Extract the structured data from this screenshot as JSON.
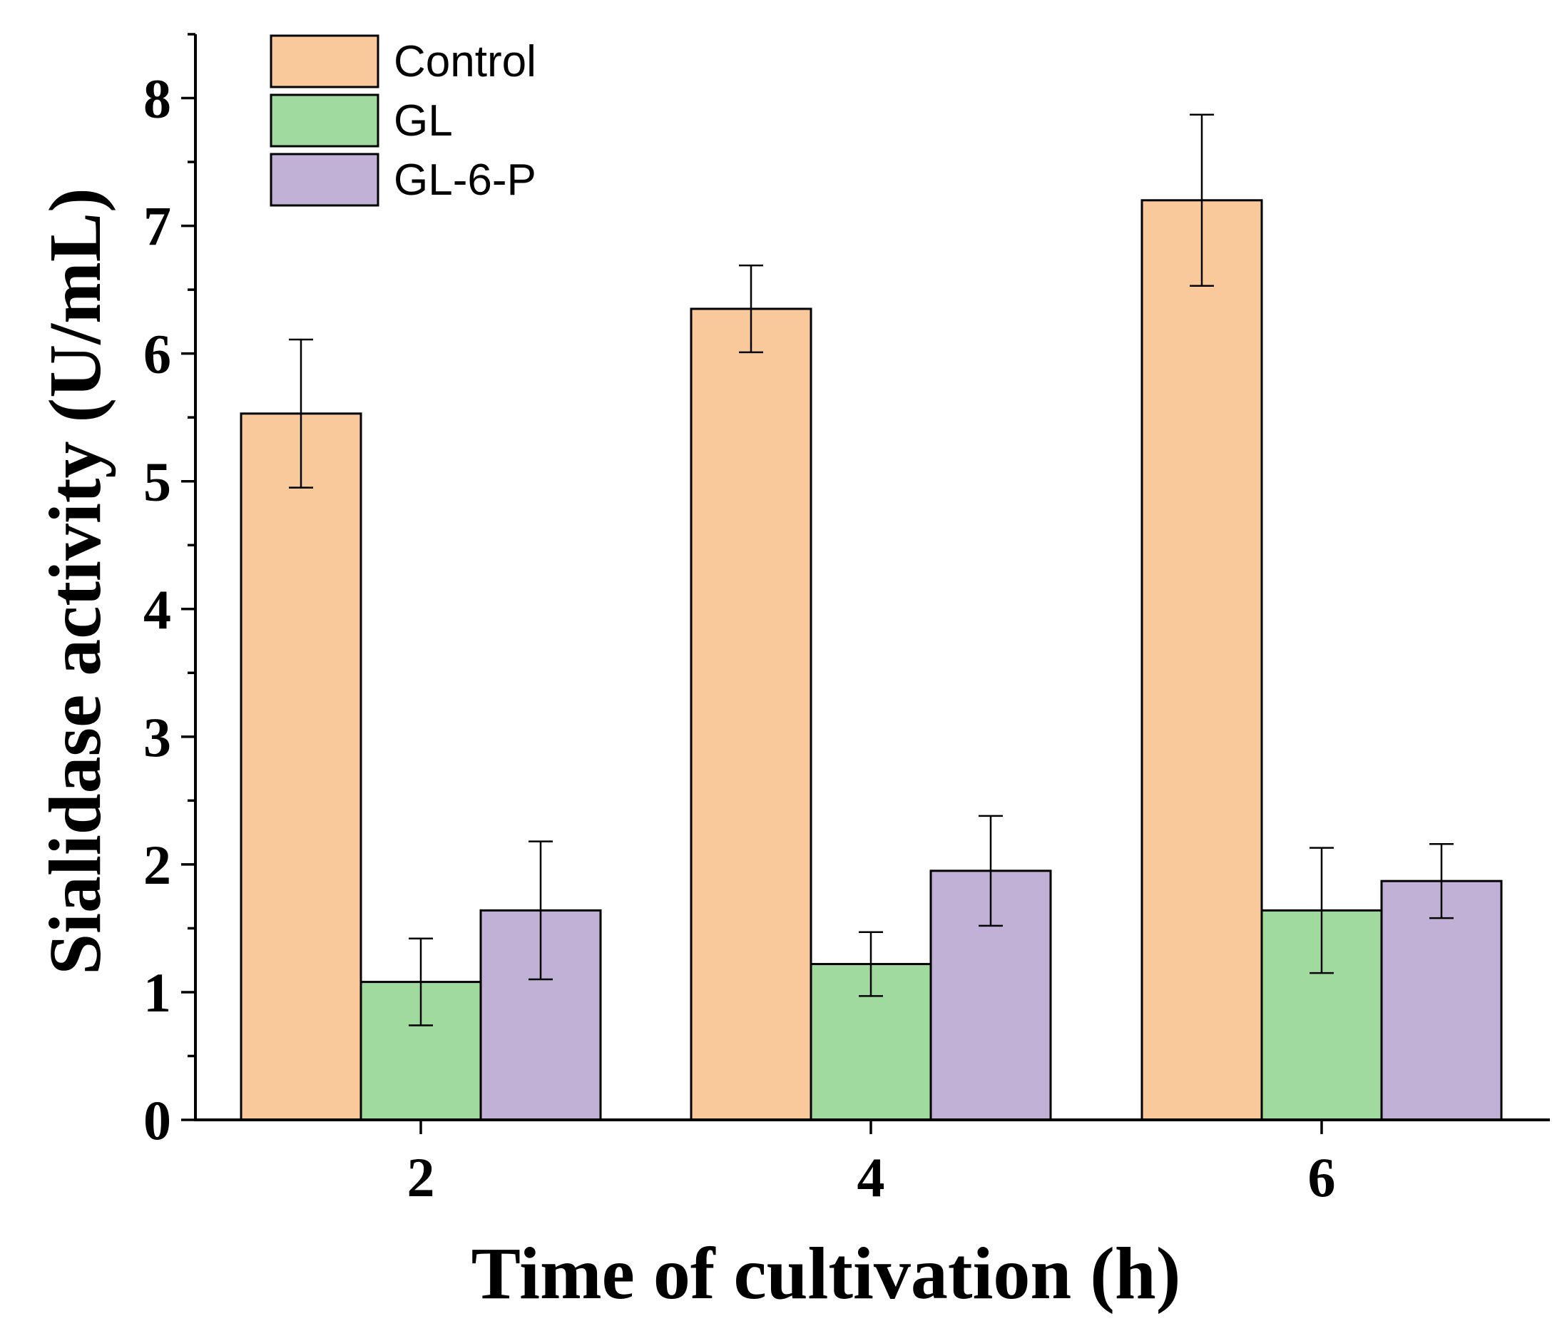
{
  "chart_data": {
    "type": "bar",
    "title": "",
    "xlabel": "Time of cultivation (h)",
    "ylabel": "Sialidase activity (U/mL)",
    "categories": [
      "2",
      "4",
      "6"
    ],
    "ylim": [
      0,
      8.5
    ],
    "yticks": [
      0,
      1,
      2,
      3,
      4,
      5,
      6,
      7,
      8
    ],
    "grid": false,
    "legend_position": "top-left",
    "series": [
      {
        "name": "Control",
        "color": "#F9C89B",
        "values": [
          5.53,
          6.35,
          7.2
        ],
        "errors": [
          0.58,
          0.34,
          0.67
        ]
      },
      {
        "name": "GL",
        "color": "#A1DA9F",
        "values": [
          1.08,
          1.22,
          1.64
        ],
        "errors": [
          0.34,
          0.25,
          0.49
        ]
      },
      {
        "name": "GL-6-P",
        "color": "#C2B1D6",
        "values": [
          1.64,
          1.95,
          1.87
        ],
        "errors": [
          0.54,
          0.43,
          0.29
        ]
      }
    ]
  }
}
